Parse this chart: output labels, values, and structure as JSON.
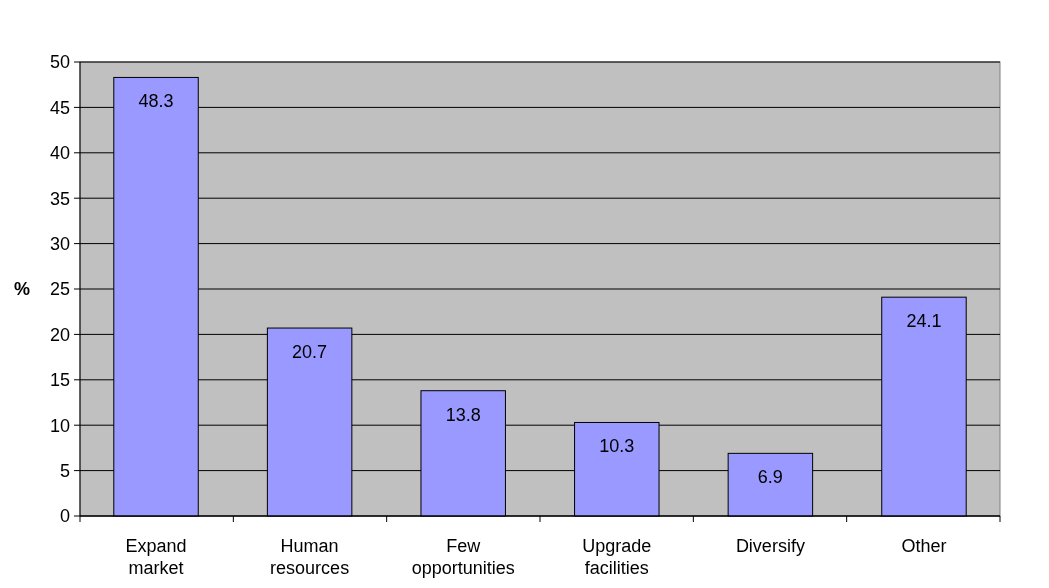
{
  "chart_data": {
    "type": "bar",
    "ylabel": "%",
    "categories": [
      "Expand market",
      "Human resources",
      "Few opportunities",
      "Upgrade facilities",
      "Diversify",
      "Other"
    ],
    "values": [
      48.3,
      20.7,
      13.8,
      10.3,
      6.9,
      24.1
    ],
    "color": "#9999ff",
    "ylim": [
      0,
      50
    ],
    "yticks": [
      0,
      5,
      10,
      15,
      20,
      25,
      30,
      35,
      40,
      45,
      50
    ],
    "grid": "y",
    "data_labels": true
  }
}
